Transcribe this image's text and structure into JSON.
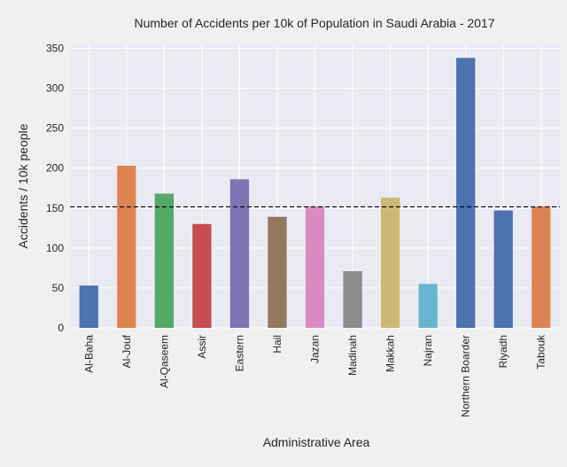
{
  "chart_data": {
    "type": "bar",
    "title": "Number of Accidents per 10k of Population in Saudi Arabia - 2017",
    "xlabel": "Administrative Area",
    "ylabel": "Accidents / 10k people",
    "ylim": [
      0,
      355
    ],
    "yticks": [
      0,
      50,
      100,
      150,
      200,
      250,
      300,
      350
    ],
    "grid": true,
    "categories": [
      "Al-Baha",
      "Al-Jouf",
      "Al-Qaseem",
      "Assir",
      "Eastern",
      "Hail",
      "Jazan",
      "Madinah",
      "Makkah",
      "Najran",
      "Northern Boarder",
      "Riyadh",
      "Tabouk"
    ],
    "values": [
      53,
      203,
      168,
      130,
      186,
      139,
      152,
      71,
      163,
      55,
      338,
      147,
      152
    ],
    "bar_colors": [
      "#4c72b0",
      "#dd8452",
      "#55a868",
      "#c44e52",
      "#8172b3",
      "#937860",
      "#da8bc3",
      "#8c8c8c",
      "#ccb974",
      "#64b5cd",
      "#4c72b0",
      "#4c72b0",
      "#dd8452"
    ],
    "reference_line": {
      "value": 151.5,
      "style": "dashed",
      "color": "#000000"
    },
    "colors": {
      "plot_background": "#eaeaf2",
      "figure_background": "#f0f0f0",
      "grid": "#ffffff"
    }
  }
}
